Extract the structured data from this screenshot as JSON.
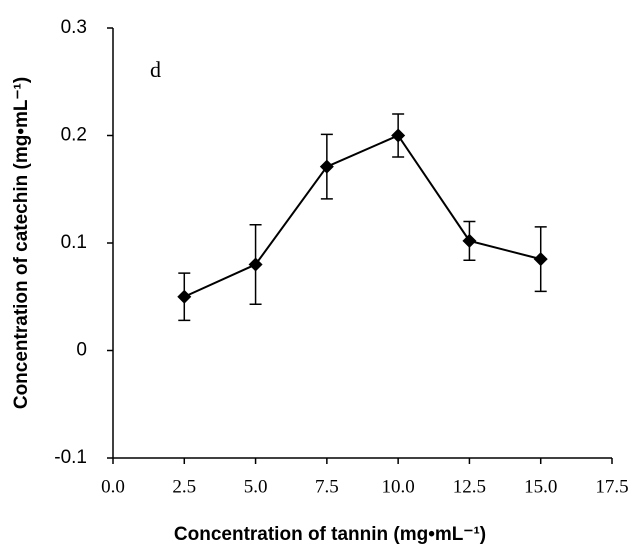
{
  "chart_data": {
    "type": "line",
    "x_label": "Concentration of tannin (mg•mL⁻¹)",
    "y_label": "Concentration of catechin (mg•mL⁻¹)",
    "annotation": "d",
    "x": [
      2.5,
      5,
      7.5,
      10,
      12.5,
      15
    ],
    "series": [
      {
        "color": "#000000",
        "values": [
          0.05,
          0.08,
          0.171,
          0.2,
          0.102,
          0.085
        ],
        "errors": [
          0.022,
          0.037,
          0.03,
          0.02,
          0.018,
          0.03
        ]
      }
    ],
    "xlim": [
      0,
      17.5
    ],
    "xticks": [
      {
        "value": 0,
        "label": "0.0"
      },
      2.5,
      {
        "value": 5,
        "label": "5.0"
      },
      7.5,
      {
        "value": 10,
        "label": "10.0"
      },
      12.5,
      {
        "value": 15,
        "label": "15.0"
      },
      17.5
    ],
    "ylim": [
      -0.1,
      0.3
    ],
    "yticks": [
      -0.1,
      0,
      0.1,
      0.2,
      0.3
    ],
    "grid": false
  }
}
